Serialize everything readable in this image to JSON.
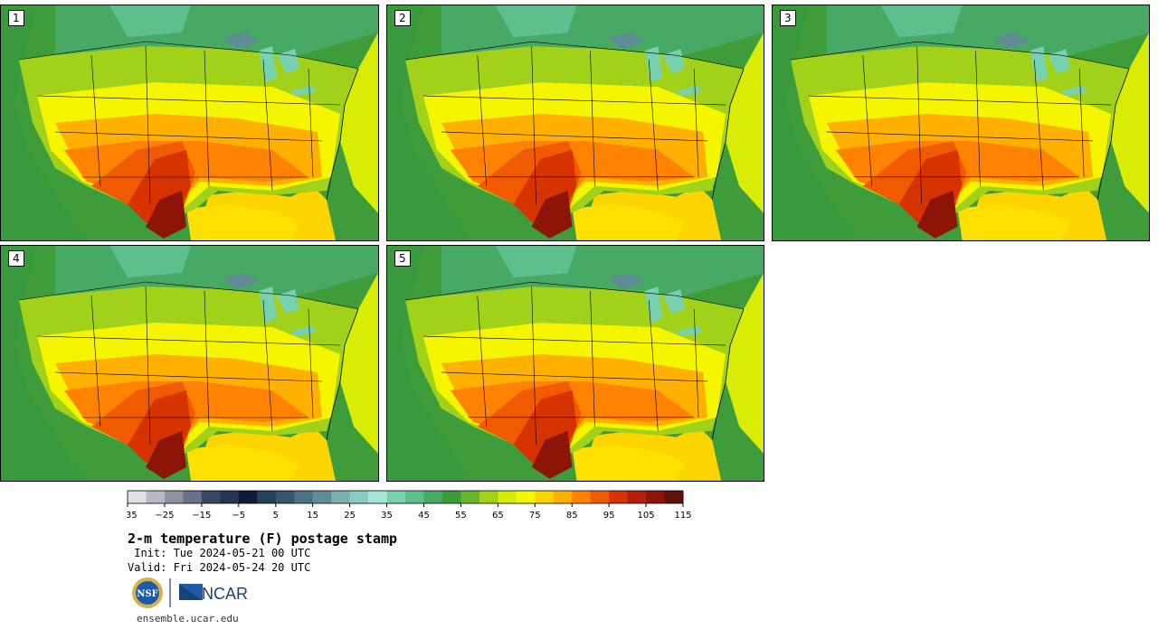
{
  "panels": [
    {
      "label": "1"
    },
    {
      "label": "2"
    },
    {
      "label": "3"
    },
    {
      "label": "4"
    },
    {
      "label": "5"
    }
  ],
  "colorbar": {
    "ticks": [
      "−35",
      "−25",
      "−15",
      "−5",
      "5",
      "15",
      "25",
      "35",
      "45",
      "55",
      "65",
      "75",
      "85",
      "95",
      "105",
      "115"
    ],
    "colors": [
      "#e0e0e6",
      "#b7bac3",
      "#8e93a1",
      "#68708a",
      "#3a4760",
      "#243651",
      "#0f1c33",
      "#27405a",
      "#35566d",
      "#4a7280",
      "#5f8c95",
      "#7aaeb0",
      "#8ccbc4",
      "#a3e6d9",
      "#78d1ae",
      "#5fbe8e",
      "#47a964",
      "#3b9c3a",
      "#67b52b",
      "#a2d11a",
      "#d6eb08",
      "#f5f500",
      "#ffd500",
      "#ffb000",
      "#ff8200",
      "#f05a00",
      "#d73300",
      "#b51e0b",
      "#8c1409",
      "#5e1208"
    ]
  },
  "title": "2-m temperature (F) postage stamp",
  "init": " Init: Tue 2024-05-21 00 UTC",
  "valid": "Valid: Fri 2024-05-24 20 UTC",
  "logos": {
    "nsf": "NSF",
    "ncar": "NCAR"
  },
  "url": "ensemble.ucar.edu"
}
